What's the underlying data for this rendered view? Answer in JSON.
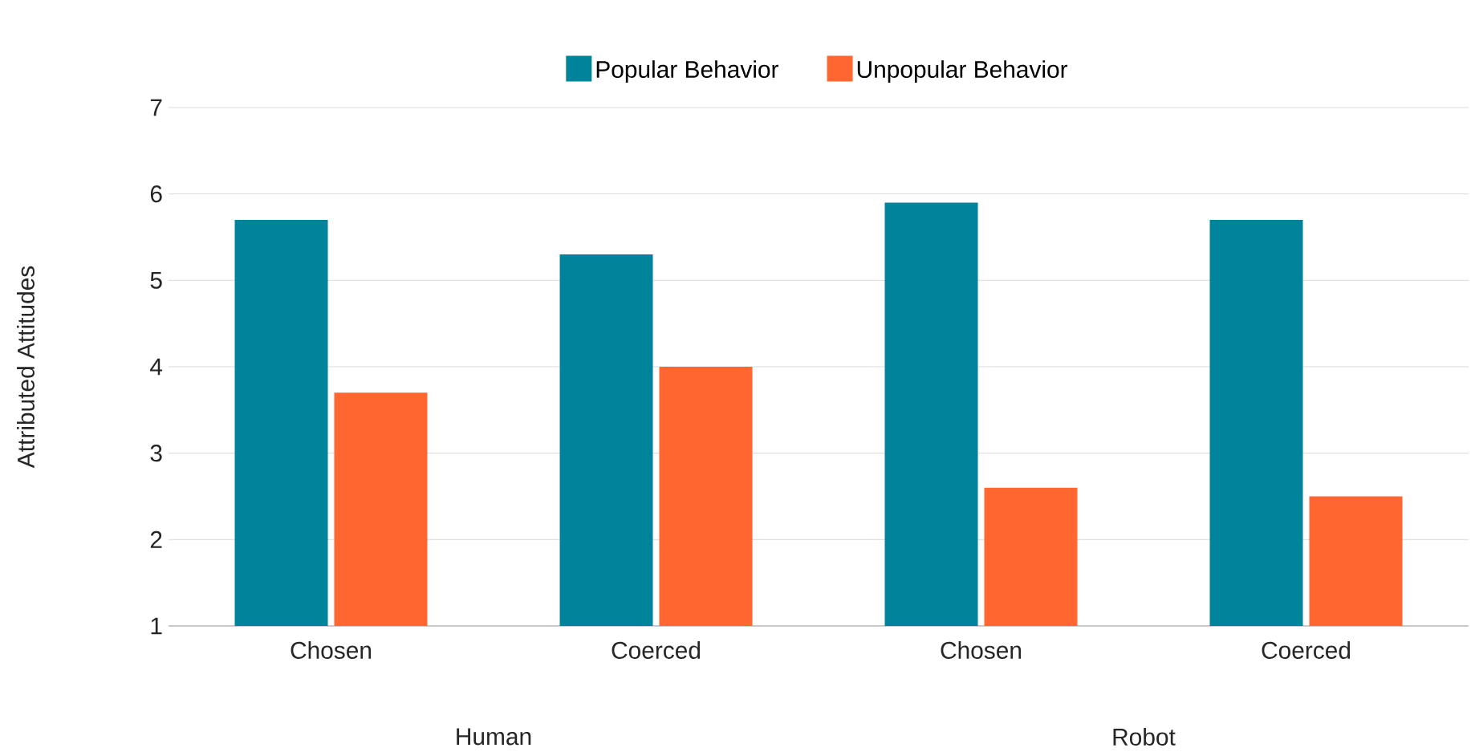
{
  "chart_data": {
    "type": "bar",
    "ylabel": "Attributed Attitudes",
    "categories": [
      "Chosen",
      "Coerced",
      "Chosen",
      "Coerced"
    ],
    "series": [
      {
        "name": "Popular Behavior",
        "color": "#00849b",
        "values": [
          5.7,
          5.3,
          5.9,
          5.7
        ]
      },
      {
        "name": "Unpopular Behavior",
        "color": "#ff6630",
        "values": [
          3.7,
          4.0,
          2.6,
          2.5
        ]
      }
    ],
    "ylim": [
      1,
      7
    ],
    "yticks": [
      1,
      2,
      3,
      4,
      5,
      6,
      7
    ],
    "grid": "y",
    "legend": "top",
    "annotations": [
      "Human",
      "Robot"
    ]
  }
}
